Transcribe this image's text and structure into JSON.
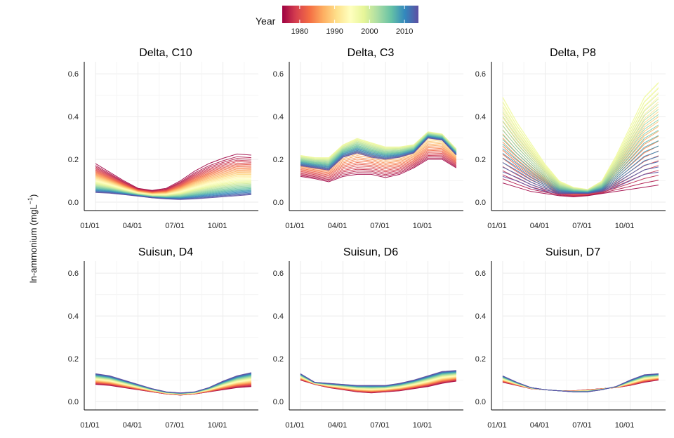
{
  "chart_data": {
    "type": "line",
    "ylabel_main": "ln-ammonium (mgL",
    "ylabel_sup": "−1",
    "ylabel_tail": ")",
    "x_ticks": [
      "01/01",
      "04/01",
      "07/01",
      "10/01"
    ],
    "y_ticks": [
      "0.0",
      "0.2",
      "0.4",
      "0.6"
    ],
    "ylim": [
      0,
      0.63
    ],
    "legend": {
      "title": "Year",
      "range": [
        1975,
        2014
      ],
      "ticks": [
        "1980",
        "1990",
        "2000",
        "2010"
      ],
      "tick_values": [
        1980,
        1990,
        2000,
        2010
      ],
      "colors": [
        "#9e0142",
        "#d53e4f",
        "#f46d43",
        "#fdae61",
        "#fee08b",
        "#ffffbf",
        "#e6f598",
        "#abdda4",
        "#66c2a5",
        "#3288bd",
        "#5e4fa2"
      ]
    },
    "x_months": [
      0.5,
      1.5,
      2.5,
      3.5,
      4.5,
      5.5,
      6.5,
      7.5,
      8.5,
      9.5,
      10.5,
      11.5
    ],
    "xlim": [
      0.5,
      12
    ],
    "tick_months": [
      0.5,
      3.5,
      6.5,
      9.5
    ],
    "years": [
      1975,
      2014
    ],
    "panels": [
      {
        "title": "Delta, C10",
        "first_year": [
          0.18,
          0.14,
          0.1,
          0.065,
          0.055,
          0.065,
          0.1,
          0.145,
          0.18,
          0.205,
          0.225,
          0.22
        ],
        "last_year": [
          0.045,
          0.042,
          0.035,
          0.028,
          0.02,
          0.015,
          0.012,
          0.015,
          0.02,
          0.025,
          0.03,
          0.035
        ],
        "curve": 0.75
      },
      {
        "title": "Delta, C3",
        "first_year": [
          0.12,
          0.11,
          0.095,
          0.12,
          0.13,
          0.13,
          0.115,
          0.13,
          0.16,
          0.2,
          0.2,
          0.16
        ],
        "last_year": [
          0.17,
          0.16,
          0.15,
          0.21,
          0.23,
          0.21,
          0.2,
          0.21,
          0.23,
          0.3,
          0.29,
          0.22
        ],
        "mid_year": [
          0.22,
          0.21,
          0.21,
          0.27,
          0.3,
          0.28,
          0.26,
          0.26,
          0.27,
          0.33,
          0.32,
          0.25
        ],
        "curve": 1.0
      },
      {
        "title": "Delta, P8",
        "first_year": [
          0.09,
          0.07,
          0.05,
          0.04,
          0.03,
          0.025,
          0.03,
          0.04,
          0.05,
          0.06,
          0.07,
          0.08
        ],
        "last_year": [
          0.12,
          0.1,
          0.07,
          0.05,
          0.04,
          0.04,
          0.04,
          0.05,
          0.07,
          0.1,
          0.13,
          0.14
        ],
        "mid_year": [
          0.5,
          0.38,
          0.28,
          0.18,
          0.1,
          0.07,
          0.06,
          0.1,
          0.22,
          0.36,
          0.5,
          0.57
        ],
        "curve": 1.0
      },
      {
        "title": "Suisun, D4",
        "first_year": [
          0.08,
          0.075,
          0.065,
          0.055,
          0.045,
          0.035,
          0.03,
          0.035,
          0.045,
          0.055,
          0.065,
          0.07
        ],
        "last_year": [
          0.13,
          0.12,
          0.1,
          0.08,
          0.06,
          0.045,
          0.04,
          0.045,
          0.065,
          0.095,
          0.12,
          0.135
        ],
        "curve": 1.0
      },
      {
        "title": "Suisun, D6",
        "first_year": [
          0.1,
          0.08,
          0.065,
          0.055,
          0.045,
          0.04,
          0.045,
          0.05,
          0.06,
          0.07,
          0.085,
          0.095
        ],
        "last_year": [
          0.13,
          0.09,
          0.085,
          0.08,
          0.075,
          0.075,
          0.075,
          0.085,
          0.1,
          0.12,
          0.14,
          0.145
        ],
        "curve": 1.0
      },
      {
        "title": "Suisun, D7",
        "first_year": [
          0.09,
          0.075,
          0.06,
          0.055,
          0.05,
          0.05,
          0.055,
          0.06,
          0.065,
          0.075,
          0.09,
          0.1
        ],
        "last_year": [
          0.12,
          0.09,
          0.065,
          0.055,
          0.05,
          0.045,
          0.045,
          0.055,
          0.07,
          0.1,
          0.125,
          0.13
        ],
        "curve": 1.0
      }
    ]
  }
}
